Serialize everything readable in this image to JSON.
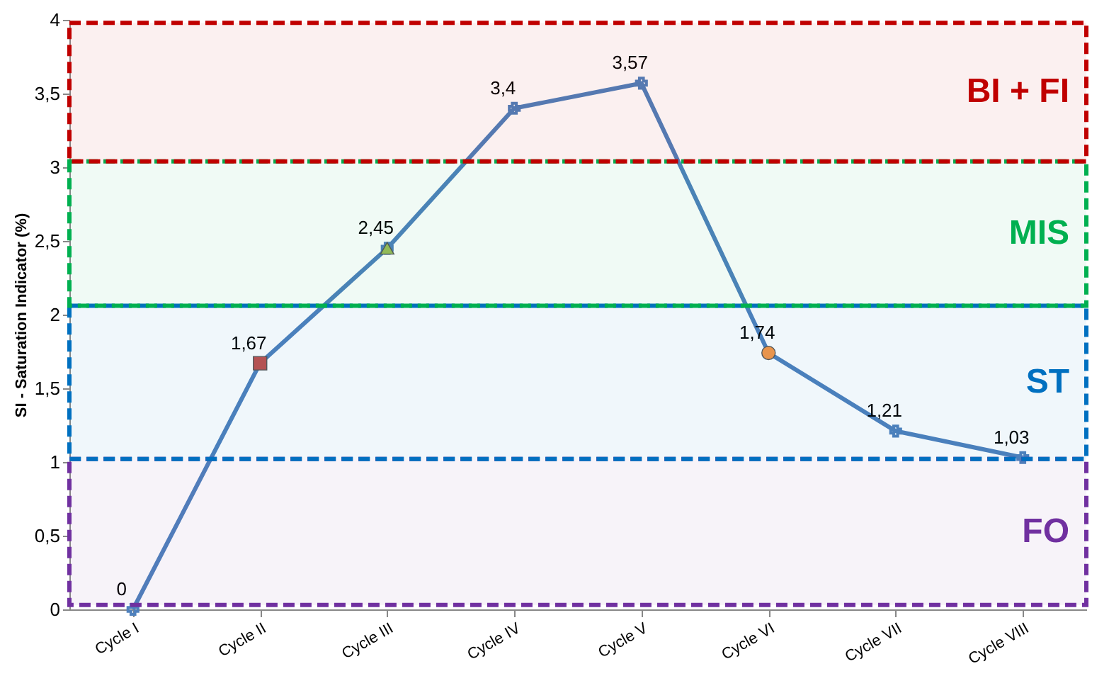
{
  "chart_data": {
    "type": "line",
    "ylabel": "SI - Saturation Indicator (%)",
    "categories": [
      "Cycle I",
      "Cycle II",
      "Cycle III",
      "Cycle IV",
      "Cycle V",
      "Cycle VI",
      "Cycle VII",
      "Cycle VIII"
    ],
    "ylim": [
      0,
      4
    ],
    "yticks": [
      0,
      {
        "value": 0.5,
        "label": "0,5"
      },
      1,
      {
        "value": 1.5,
        "label": "1,5"
      },
      2,
      {
        "value": 2.5,
        "label": "2,5"
      },
      3,
      {
        "value": 3.5,
        "label": "3,5"
      },
      4
    ],
    "series": [
      {
        "color": "#4f81bd",
        "marker": "cross",
        "values": [
          0,
          1.67,
          2.45,
          3.4,
          3.57,
          1.74,
          1.21,
          1.03
        ],
        "value_labels": [
          "0",
          "1,67",
          "2,45",
          "3,4",
          "3,57",
          "1,74",
          "1,21",
          "1,03"
        ]
      },
      {
        "type": "scatter",
        "color": "#c0504d",
        "marker": "square",
        "x": [
          "Cycle II"
        ],
        "values": [
          1.67
        ]
      },
      {
        "type": "scatter",
        "color": "#9bbb59",
        "marker": "triangle",
        "x": [
          "Cycle III"
        ],
        "values": [
          2.45
        ]
      },
      {
        "type": "scatter",
        "color": "#f79646",
        "marker": "circle",
        "x": [
          "Cycle VI"
        ],
        "values": [
          1.74
        ]
      }
    ],
    "bands": [
      {
        "axis": "y",
        "from": 0.03,
        "to": 1.02,
        "label": "FO",
        "color": "#7030a0"
      },
      {
        "axis": "y",
        "from": 1.02,
        "to": 2.06,
        "label": "ST",
        "color": "#0070c0"
      },
      {
        "axis": "y",
        "from": 2.06,
        "to": 3.04,
        "label": "MIS",
        "color": "#00b050"
      },
      {
        "axis": "y",
        "from": 3.04,
        "to": 3.98,
        "label": "BI + FI",
        "color": "#c00000"
      }
    ],
    "grid": false
  }
}
